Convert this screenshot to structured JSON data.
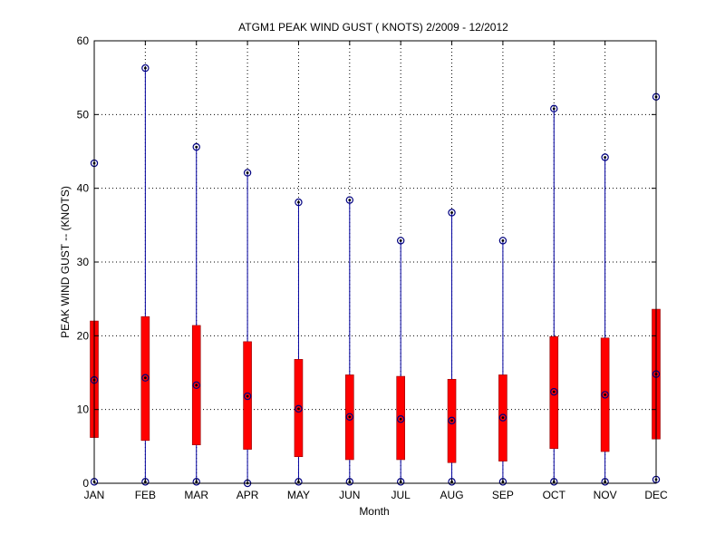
{
  "chart_data": {
    "type": "boxplot",
    "title": "ATGM1  PEAK WIND GUST ( KNOTS) 2/2009 - 12/2012",
    "xlabel": "Month",
    "ylabel": "PEAK WIND GUST -- (KNOTS)",
    "ylim": [
      0,
      60
    ],
    "yticks": [
      "0",
      "10",
      "20",
      "30",
      "40",
      "50",
      "60"
    ],
    "categories": [
      "JAN",
      "FEB",
      "MAR",
      "APR",
      "MAY",
      "JUN",
      "JUL",
      "AUG",
      "SEP",
      "OCT",
      "NOV",
      "DEC"
    ],
    "min": [
      0.2,
      0.2,
      0.2,
      0.0,
      0.2,
      0.2,
      0.2,
      0.2,
      0.2,
      0.2,
      0.2,
      0.5
    ],
    "q1": [
      6.2,
      5.8,
      5.2,
      4.6,
      3.6,
      3.2,
      3.2,
      2.8,
      3.0,
      4.7,
      4.3,
      6.0
    ],
    "median": [
      14.0,
      14.3,
      13.3,
      11.8,
      10.1,
      9.0,
      8.7,
      8.5,
      8.9,
      12.4,
      12.0,
      14.8
    ],
    "q3": [
      22.0,
      22.6,
      21.4,
      19.2,
      16.8,
      14.7,
      14.5,
      14.1,
      14.7,
      19.9,
      19.7,
      23.6
    ],
    "max": [
      43.4,
      56.3,
      45.6,
      42.1,
      38.1,
      38.4,
      32.9,
      36.7,
      32.9,
      50.8,
      44.2,
      52.4
    ],
    "grid": true,
    "colors": {
      "whisker": "#0000a0",
      "box": "#ff0000",
      "box_edge": "#900000",
      "marker": "#000080",
      "grid": "#000000"
    }
  }
}
